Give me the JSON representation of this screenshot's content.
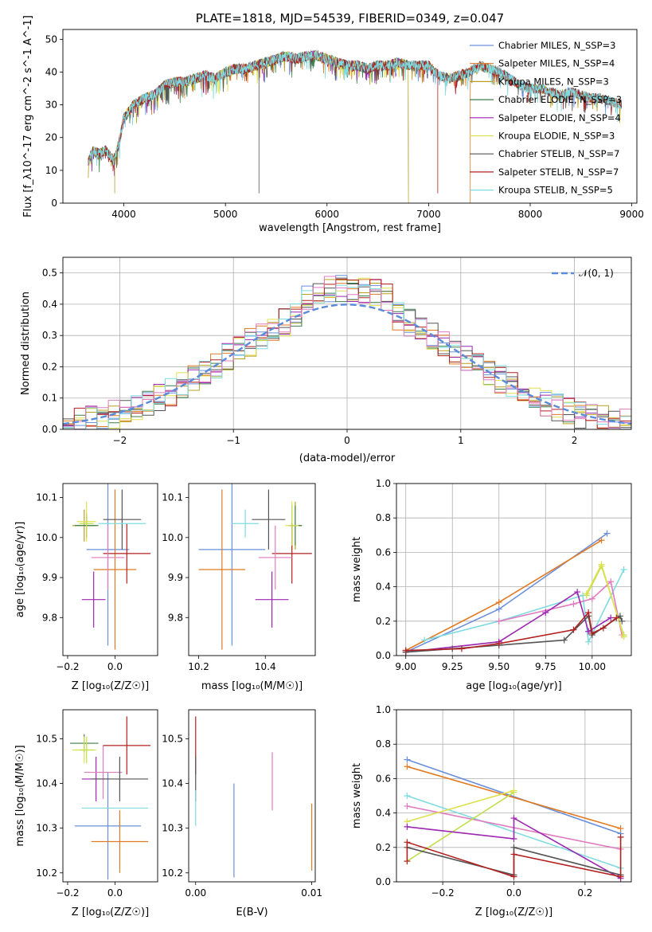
{
  "colors": {
    "chabrier_miles": "#6a8fdc",
    "salpeter_miles": "#e07a23",
    "kroupa_miles": "#b8a020",
    "chabrier_elodie": "#3e7f4a",
    "salpeter_elodie": "#9c27b0",
    "kroupa_elodie": "#dfe050",
    "chabrier_stelib": "#555555",
    "salpeter_stelib": "#b22020",
    "kroupa_stelib": "#7fdbe0",
    "pink": "#e07bbf",
    "lime": "#bfe04a",
    "gauss": "#5a8ad8"
  },
  "chart_data": [
    {
      "type": "line",
      "title": "PLATE=1818, MJD=54539, FIBERID=0349, z=0.047",
      "xlabel": "wavelength [Angstrom, rest frame]",
      "ylabel": "Flux [f_λ10^-17 erg cm^-2 s^-1 A^-1]",
      "xlim": [
        3400,
        9050
      ],
      "ylim": [
        0,
        53
      ],
      "xticks": [
        "4000",
        "5000",
        "6000",
        "7000",
        "8000",
        "9000"
      ],
      "yticks": [
        "0",
        "10",
        "20",
        "30",
        "40",
        "50"
      ],
      "spectrum_anchors": [
        [
          3650,
          13
        ],
        [
          3700,
          16
        ],
        [
          3760,
          15
        ],
        [
          3820,
          16
        ],
        [
          3900,
          13
        ],
        [
          3950,
          18
        ],
        [
          4000,
          26
        ],
        [
          4100,
          30
        ],
        [
          4200,
          32
        ],
        [
          4300,
          33
        ],
        [
          4400,
          36
        ],
        [
          4500,
          37
        ],
        [
          4600,
          37
        ],
        [
          4700,
          38
        ],
        [
          4800,
          39
        ],
        [
          4900,
          38
        ],
        [
          5000,
          40
        ],
        [
          5100,
          41
        ],
        [
          5200,
          41
        ],
        [
          5300,
          42
        ],
        [
          5400,
          43
        ],
        [
          5500,
          44
        ],
        [
          5600,
          45
        ],
        [
          5700,
          44
        ],
        [
          5800,
          45
        ],
        [
          5900,
          45
        ],
        [
          6000,
          44
        ],
        [
          6100,
          43
        ],
        [
          6200,
          42
        ],
        [
          6300,
          42
        ],
        [
          6400,
          41
        ],
        [
          6500,
          42
        ],
        [
          6600,
          42
        ],
        [
          6700,
          43
        ],
        [
          6800,
          42
        ],
        [
          6900,
          42
        ],
        [
          7000,
          42
        ],
        [
          7100,
          39
        ],
        [
          7200,
          38
        ],
        [
          7300,
          39
        ],
        [
          7400,
          40
        ],
        [
          7500,
          42
        ],
        [
          7600,
          41
        ],
        [
          7700,
          40
        ],
        [
          7800,
          38
        ],
        [
          7900,
          36
        ],
        [
          8000,
          35
        ],
        [
          8100,
          35
        ],
        [
          8200,
          34
        ],
        [
          8300,
          33
        ],
        [
          8400,
          34
        ],
        [
          8500,
          33
        ],
        [
          8600,
          32
        ],
        [
          8700,
          32
        ],
        [
          8800,
          31
        ],
        [
          8900,
          30
        ]
      ],
      "series": [
        {
          "name": "Chabrier MILES, N_SSP=3",
          "color": "#6a8fdc",
          "xmax": 8900
        },
        {
          "name": "Salpeter MILES, N_SSP=4",
          "color": "#e07a23",
          "xmax": 7410
        },
        {
          "name": "Kroupa MILES, N_SSP=3",
          "color": "#b8a020",
          "xmax": 8900
        },
        {
          "name": "Chabrier ELODIE, N_SSP=3",
          "color": "#3e7f4a",
          "xmax": 6800
        },
        {
          "name": "Salpeter ELODIE, N_SSP=4",
          "color": "#9c27b0",
          "xmax": 6800
        },
        {
          "name": "Kroupa ELODIE, N_SSP=3",
          "color": "#dfe050",
          "xmax": 6800
        },
        {
          "name": "Chabrier STELIB, N_SSP=7",
          "color": "#555555",
          "xmax": 8900
        },
        {
          "name": "Salpeter STELIB, N_SSP=7",
          "color": "#b22020",
          "xmax": 8900
        },
        {
          "name": "Kroupa STELIB, N_SSP=5",
          "color": "#7fdbe0",
          "xmax": 8900
        }
      ],
      "legend": "top-right"
    },
    {
      "type": "line",
      "xlabel": "(data-model)/error",
      "ylabel": "Normed distribution",
      "xlim": [
        -2.5,
        2.5
      ],
      "ylim": [
        0,
        0.55
      ],
      "xticks": [
        "−2",
        "−1",
        "0",
        "1",
        "2"
      ],
      "yticks": [
        "0.0",
        "0.1",
        "0.2",
        "0.3",
        "0.4",
        "0.5"
      ],
      "grid": true,
      "gauss_label": "𝒩(0, 1)",
      "bin_width": 0.1,
      "legend": "top-right"
    },
    {
      "type": "scatter",
      "xlabel": "Z [log₁₀(Z/Z☉)]",
      "ylabel": "age  [log₁₀(age/yr)]",
      "xlim": [
        -0.22,
        0.18
      ],
      "ylim": [
        9.705,
        10.135
      ],
      "xticks": [
        "−0.2",
        "0.0"
      ],
      "yticks": [
        "9.8",
        "9.9",
        "10.0",
        "10.1"
      ],
      "points": [
        {
          "color": "#6a8fdc",
          "x": -0.03,
          "y": 9.97,
          "xerr": 0.09,
          "yerr": 0.24
        },
        {
          "color": "#e07a23",
          "x": 0.0,
          "y": 9.92,
          "xerr": 0.09,
          "yerr": 0.2
        },
        {
          "color": "#b8a020",
          "x": -0.13,
          "y": 10.03,
          "xerr": 0.05,
          "yerr": 0.04
        },
        {
          "color": "#3e7f4a",
          "x": -0.12,
          "y": 10.03,
          "xerr": 0.05,
          "yerr": 0.03
        },
        {
          "color": "#9c27b0",
          "x": -0.09,
          "y": 9.845,
          "xerr": 0.05,
          "yerr": 0.07
        },
        {
          "color": "#dfe050",
          "x": -0.12,
          "y": 10.04,
          "xerr": 0.04,
          "yerr": 0.05
        },
        {
          "color": "#555555",
          "x": 0.03,
          "y": 10.045,
          "xerr": 0.08,
          "yerr": 0.075
        },
        {
          "color": "#b22020",
          "x": 0.05,
          "y": 9.96,
          "xerr": 0.1,
          "yerr": 0.075
        },
        {
          "color": "#7fdbe0",
          "x": 0.03,
          "y": 10.035,
          "xerr": 0.1,
          "yerr": 0.0
        },
        {
          "color": "#e07bbf",
          "x": -0.03,
          "y": 9.95,
          "xerr": 0.07,
          "yerr": 0.08
        },
        {
          "color": "#bfe04a",
          "x": -0.12,
          "y": 10.035,
          "xerr": 0.03,
          "yerr": 0.0
        }
      ]
    },
    {
      "type": "scatter",
      "xlabel": "mass [log₁₀(M/M☉)]",
      "ylabel": "",
      "xlim": [
        10.17,
        10.55
      ],
      "ylim": [
        9.705,
        10.135
      ],
      "xticks": [
        "10.2",
        "10.4"
      ],
      "yticks": [
        "9.8",
        "9.9",
        "10.0",
        "10.1"
      ],
      "points": [
        {
          "color": "#6a8fdc",
          "x": 10.3,
          "y": 9.97,
          "xerr": 0.1,
          "yerr": 0.24
        },
        {
          "color": "#e07a23",
          "x": 10.27,
          "y": 9.92,
          "xerr": 0.07,
          "yerr": 0.2
        },
        {
          "color": "#b8a020",
          "x": 10.49,
          "y": 10.03,
          "xerr": 0.02,
          "yerr": 0.06
        },
        {
          "color": "#3e7f4a",
          "x": 10.49,
          "y": 10.03,
          "xerr": 0.02,
          "yerr": 0.05
        },
        {
          "color": "#9c27b0",
          "x": 10.42,
          "y": 9.845,
          "xerr": 0.05,
          "yerr": 0.07
        },
        {
          "color": "#dfe050",
          "x": 10.48,
          "y": 10.03,
          "xerr": 0.02,
          "yerr": 0.06
        },
        {
          "color": "#555555",
          "x": 10.41,
          "y": 10.045,
          "xerr": 0.05,
          "yerr": 0.075
        },
        {
          "color": "#b22020",
          "x": 10.48,
          "y": 9.96,
          "xerr": 0.06,
          "yerr": 0.075
        },
        {
          "color": "#7fdbe0",
          "x": 10.34,
          "y": 10.035,
          "xerr": 0.04,
          "yerr": 0.035
        },
        {
          "color": "#e07bbf",
          "x": 10.43,
          "y": 9.95,
          "xerr": 0.05,
          "yerr": 0.08
        },
        {
          "color": "#bfe04a",
          "x": 10.48,
          "y": 10.03,
          "xerr": 0.0,
          "yerr": 0.05
        }
      ]
    },
    {
      "type": "line",
      "xlabel": "age  [log₁₀(age/yr)]",
      "ylabel": "mass weight",
      "xlim": [
        8.95,
        10.21
      ],
      "ylim": [
        0,
        1.0
      ],
      "xticks": [
        "9.00",
        "9.25",
        "9.50",
        "9.75",
        "10.00"
      ],
      "yticks": [
        "0.0",
        "0.2",
        "0.4",
        "0.6",
        "0.8",
        "1.0"
      ],
      "grid": true,
      "series": [
        {
          "color": "#6a8fdc",
          "points": [
            [
              9.0,
              0.02
            ],
            [
              9.5,
              0.27
            ],
            [
              10.08,
              0.71
            ]
          ]
        },
        {
          "color": "#e07a23",
          "points": [
            [
              9.0,
              0.03
            ],
            [
              9.5,
              0.31
            ],
            [
              10.05,
              0.67
            ]
          ]
        },
        {
          "color": "#7fdbe0",
          "points": [
            [
              9.1,
              0.09
            ],
            [
              9.5,
              0.2
            ],
            [
              9.95,
              0.35
            ],
            [
              9.98,
              0.08
            ],
            [
              10.17,
              0.5
            ]
          ]
        },
        {
          "color": "#e07bbf",
          "points": [
            [
              9.5,
              0.2
            ],
            [
              9.9,
              0.3
            ],
            [
              10.0,
              0.33
            ],
            [
              10.1,
              0.43
            ],
            [
              10.16,
              0.12
            ]
          ]
        },
        {
          "color": "#bfe04a",
          "points": [
            [
              9.97,
              0.35
            ],
            [
              10.05,
              0.52
            ],
            [
              10.17,
              0.12
            ]
          ]
        },
        {
          "color": "#dfe050",
          "points": [
            [
              9.97,
              0.36
            ],
            [
              10.05,
              0.53
            ],
            [
              10.17,
              0.11
            ]
          ]
        },
        {
          "color": "#9c27b0",
          "points": [
            [
              9.0,
              0.02
            ],
            [
              9.5,
              0.08
            ],
            [
              9.75,
              0.25
            ],
            [
              9.92,
              0.37
            ],
            [
              9.98,
              0.14
            ],
            [
              10.1,
              0.22
            ]
          ]
        },
        {
          "color": "#555555",
          "points": [
            [
              9.0,
              0.02
            ],
            [
              9.25,
              0.04
            ],
            [
              9.5,
              0.06
            ],
            [
              9.85,
              0.09
            ],
            [
              9.98,
              0.23
            ],
            [
              10.0,
              0.12
            ],
            [
              10.15,
              0.23
            ],
            [
              10.16,
              0.2
            ]
          ]
        },
        {
          "color": "#b22020",
          "points": [
            [
              9.0,
              0.03
            ],
            [
              9.3,
              0.04
            ],
            [
              9.5,
              0.07
            ],
            [
              9.9,
              0.15
            ],
            [
              9.98,
              0.25
            ],
            [
              10.0,
              0.13
            ],
            [
              10.06,
              0.16
            ],
            [
              10.13,
              0.22
            ]
          ]
        }
      ]
    },
    {
      "type": "scatter",
      "xlabel": "Z [log₁₀(Z/Z☉)]",
      "ylabel": "mass [log₁₀(M/M☉)]",
      "xlim": [
        -0.22,
        0.18
      ],
      "ylim": [
        10.18,
        10.565
      ],
      "xticks": [
        "−0.2",
        "0.0"
      ],
      "yticks": [
        "10.2",
        "10.3",
        "10.4",
        "10.5"
      ],
      "points": [
        {
          "color": "#6a8fdc",
          "x": -0.03,
          "y": 10.305,
          "xerr": 0.14,
          "yerr": 0.12
        },
        {
          "color": "#e07a23",
          "x": 0.02,
          "y": 10.27,
          "xerr": 0.12,
          "yerr": 0.07
        },
        {
          "color": "#3e7f4a",
          "x": -0.13,
          "y": 10.49,
          "xerr": 0.06,
          "yerr": 0.02
        },
        {
          "color": "#dfe050",
          "x": -0.13,
          "y": 10.475,
          "xerr": 0.05,
          "yerr": 0.03
        },
        {
          "color": "#bfe04a",
          "x": -0.12,
          "y": 10.475,
          "xerr": 0.03,
          "yerr": 0.03
        },
        {
          "color": "#9c27b0",
          "x": -0.08,
          "y": 10.41,
          "xerr": 0.06,
          "yerr": 0.05
        },
        {
          "color": "#e07bbf",
          "x": -0.05,
          "y": 10.425,
          "xerr": 0.08,
          "yerr": 0.06
        },
        {
          "color": "#555555",
          "x": 0.02,
          "y": 10.41,
          "xerr": 0.12,
          "yerr": 0.05
        },
        {
          "color": "#b22020",
          "x": 0.05,
          "y": 10.485,
          "xerr": 0.1,
          "yerr": 0.065
        },
        {
          "color": "#7fdbe0",
          "x": 0.0,
          "y": 10.345,
          "xerr": 0.14,
          "yerr": 0.0
        }
      ]
    },
    {
      "type": "scatter",
      "xlabel": "E(B-V)",
      "ylabel": "",
      "xlim": [
        -0.0006,
        0.0103
      ],
      "ylim": [
        10.18,
        10.565
      ],
      "xticks": [
        "0.00",
        "0.01"
      ],
      "yticks": [
        "10.2",
        "10.3",
        "10.4",
        "10.5"
      ],
      "points": [
        {
          "color": "#b22020",
          "x": 0.0,
          "y": 10.485,
          "xerr": 0,
          "yerr": 0.065
        },
        {
          "color": "#555555",
          "x": 0.0,
          "y": 10.41,
          "xerr": 0,
          "yerr": 0.05
        },
        {
          "color": "#7fdbe0",
          "x": 0.0,
          "y": 10.345,
          "xerr": 0,
          "yerr": 0.04
        },
        {
          "color": "#6a8fdc",
          "x": 0.0033,
          "y": 10.295,
          "xerr": 0,
          "yerr": 0.105
        },
        {
          "color": "#e07bbf",
          "x": 0.0066,
          "y": 10.405,
          "xerr": 0,
          "yerr": 0.065
        },
        {
          "color": "#e07a23",
          "x": 0.01,
          "y": 10.28,
          "xerr": 0,
          "yerr": 0.075
        }
      ]
    },
    {
      "type": "line",
      "xlabel": "Z [log₁₀(Z/Z☉)]",
      "ylabel": "mass weight",
      "xlim": [
        -0.33,
        0.33
      ],
      "ylim": [
        0,
        1.0
      ],
      "xticks": [
        "−0.2",
        "0.0",
        "0.2"
      ],
      "yticks": [
        "0.0",
        "0.2",
        "0.4",
        "0.6",
        "0.8",
        "1.0"
      ],
      "grid": true,
      "series": [
        {
          "color": "#6a8fdc",
          "points": [
            [
              -0.3,
              0.71
            ],
            [
              0.3,
              0.28
            ]
          ]
        },
        {
          "color": "#e07a23",
          "points": [
            [
              -0.3,
              0.67
            ],
            [
              0.3,
              0.31
            ]
          ]
        },
        {
          "color": "#7fdbe0",
          "points": [
            [
              -0.3,
              0.5
            ],
            [
              0.3,
              0.08
            ]
          ]
        },
        {
          "color": "#e07bbf",
          "points": [
            [
              -0.3,
              0.44
            ],
            [
              0.3,
              0.19
            ]
          ]
        },
        {
          "color": "#bfe04a",
          "points": [
            [
              -0.3,
              0.12
            ],
            [
              0.0,
              0.52
            ]
          ]
        },
        {
          "color": "#dfe050",
          "points": [
            [
              -0.3,
              0.35
            ],
            [
              0.0,
              0.53
            ]
          ]
        },
        {
          "color": "#9c27b0",
          "points": [
            [
              -0.3,
              0.32
            ],
            [
              0.0,
              0.25
            ],
            [
              0.0,
              0.37
            ],
            [
              0.3,
              0.02
            ]
          ]
        },
        {
          "color": "#555555",
          "points": [
            [
              -0.3,
              0.2
            ],
            [
              0.0,
              0.04
            ],
            [
              0.0,
              0.2
            ],
            [
              0.3,
              0.04
            ]
          ]
        },
        {
          "color": "#b22020",
          "points": [
            [
              -0.3,
              0.12
            ],
            [
              -0.3,
              0.23
            ],
            [
              0.0,
              0.03
            ],
            [
              0.0,
              0.16
            ],
            [
              0.3,
              0.03
            ],
            [
              0.3,
              0.26
            ]
          ]
        }
      ]
    }
  ]
}
